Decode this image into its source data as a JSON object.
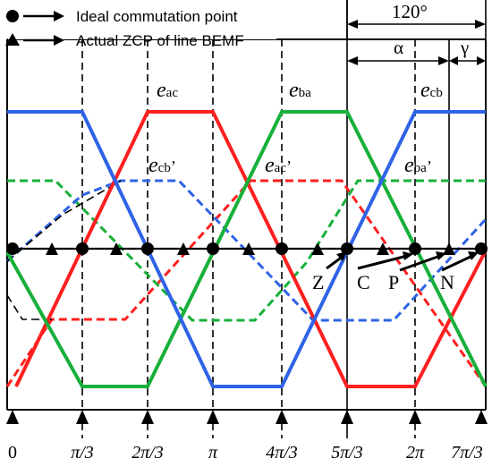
{
  "legend": {
    "items": [
      {
        "marker": "circle",
        "label": "Ideal commutation point"
      },
      {
        "marker": "triangle",
        "label": "Actual ZCP of line BEMF"
      }
    ]
  },
  "annotations": {
    "angle_total": "120°",
    "alpha": "α",
    "gamma": "γ"
  },
  "curve_labels": {
    "eac": {
      "base": "e",
      "sub": "ac"
    },
    "eba": {
      "base": "e",
      "sub": "ba"
    },
    "ecb": {
      "base": "e",
      "sub": "cb"
    },
    "ecbp": {
      "base": "e",
      "sub": "cb",
      "prime": "’"
    },
    "eacp": {
      "base": "e",
      "sub": "ac",
      "prime": "’"
    },
    "ebap": {
      "base": "e",
      "sub": "ba",
      "prime": "’"
    }
  },
  "point_labels": [
    "Z",
    "C",
    "P",
    "N"
  ],
  "x_ticks": [
    "0",
    "π/3",
    "2π/3",
    "π",
    "4π/3",
    "5π/3",
    "2π",
    "7π/3"
  ],
  "colors": {
    "red": "#ff1f1f",
    "green": "#17b03a",
    "blue": "#2f63e6",
    "black": "#000000"
  },
  "chart_data": {
    "type": "line",
    "x": [
      0,
      0.3333,
      0.6667,
      1,
      1.3333,
      1.6667,
      2,
      2.3333
    ],
    "x_unit": "π rad",
    "series": [
      {
        "name": "e_ac",
        "style": "solid",
        "values": [
          -1,
          0,
          1,
          1,
          0,
          -1,
          -1,
          0
        ]
      },
      {
        "name": "e_ba",
        "style": "solid",
        "values": [
          0,
          -1,
          -1,
          0,
          1,
          1,
          0,
          -1
        ]
      },
      {
        "name": "e_cb",
        "style": "solid",
        "values": [
          1,
          1,
          0,
          -1,
          -1,
          0,
          1,
          1
        ]
      },
      {
        "name": "e_ac’",
        "style": "dashed",
        "values": [
          -0.5,
          -0.5,
          -0.17,
          0.5,
          0.5,
          0.5,
          -0.17,
          -0.5
        ]
      },
      {
        "name": "e_ba’",
        "style": "dashed",
        "values": [
          0.5,
          0.17,
          -0.5,
          -0.5,
          -0.5,
          0.17,
          0.5,
          0.5
        ]
      },
      {
        "name": "e_cb’",
        "style": "dashed",
        "values": [
          0,
          0.5,
          0.5,
          0.17,
          -0.5,
          -0.5,
          -0.17,
          0.5
        ]
      }
    ]
  }
}
